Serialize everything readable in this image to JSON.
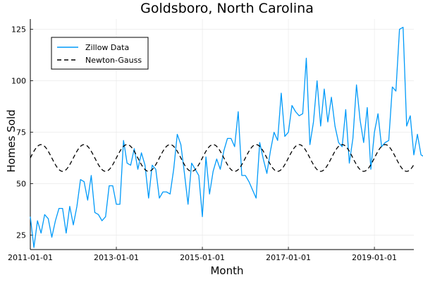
{
  "chart_data": {
    "type": "line",
    "title": "Goldsboro, North Carolina",
    "xlabel": "Month",
    "ylabel": "Homes Sold",
    "x_start": "2011-01-01",
    "x_step": "1 month",
    "xlim": [
      "2011-01-01",
      "2019-12-01"
    ],
    "ylim": [
      18,
      130
    ],
    "x_ticks": [
      "2011-01-01",
      "2013-01-01",
      "2015-01-01",
      "2017-01-01",
      "2019-01-01"
    ],
    "y_ticks": [
      25,
      50,
      75,
      100,
      125
    ],
    "grid": true,
    "legend": "top-left",
    "series": [
      {
        "name": "Zillow Data",
        "color": "#009af9",
        "style": "solid",
        "values": [
          34,
          19,
          32,
          26,
          35,
          33,
          24,
          32,
          38,
          38,
          26,
          39,
          30,
          39,
          52,
          51,
          42,
          54,
          36,
          35,
          32,
          34,
          49,
          49,
          40,
          40,
          71,
          60,
          59,
          67,
          57,
          65,
          59,
          43,
          59,
          57,
          43,
          46,
          46,
          45,
          57,
          74,
          69,
          55,
          40,
          60,
          57,
          54,
          34,
          63,
          45,
          56,
          62,
          57,
          66,
          72,
          72,
          68,
          85,
          54,
          54,
          51,
          47,
          43,
          70,
          62,
          55,
          66,
          75,
          71,
          94,
          73,
          75,
          88,
          85,
          83,
          84,
          111,
          69,
          80,
          100,
          78,
          96,
          80,
          92,
          78,
          70,
          68,
          86,
          60,
          72,
          98,
          81,
          70,
          87,
          57,
          75,
          84,
          68,
          70,
          71,
          97,
          95,
          125,
          126,
          78,
          83,
          64,
          74,
          64,
          63,
          60
        ]
      },
      {
        "name": "Newton-Gauss",
        "color": "#000000",
        "style": "dashed",
        "model": "62.5 + 6.5*sin(2*pi*t/12)",
        "period_months": 12,
        "mean": 62.5,
        "amplitude": 6.5
      }
    ]
  }
}
